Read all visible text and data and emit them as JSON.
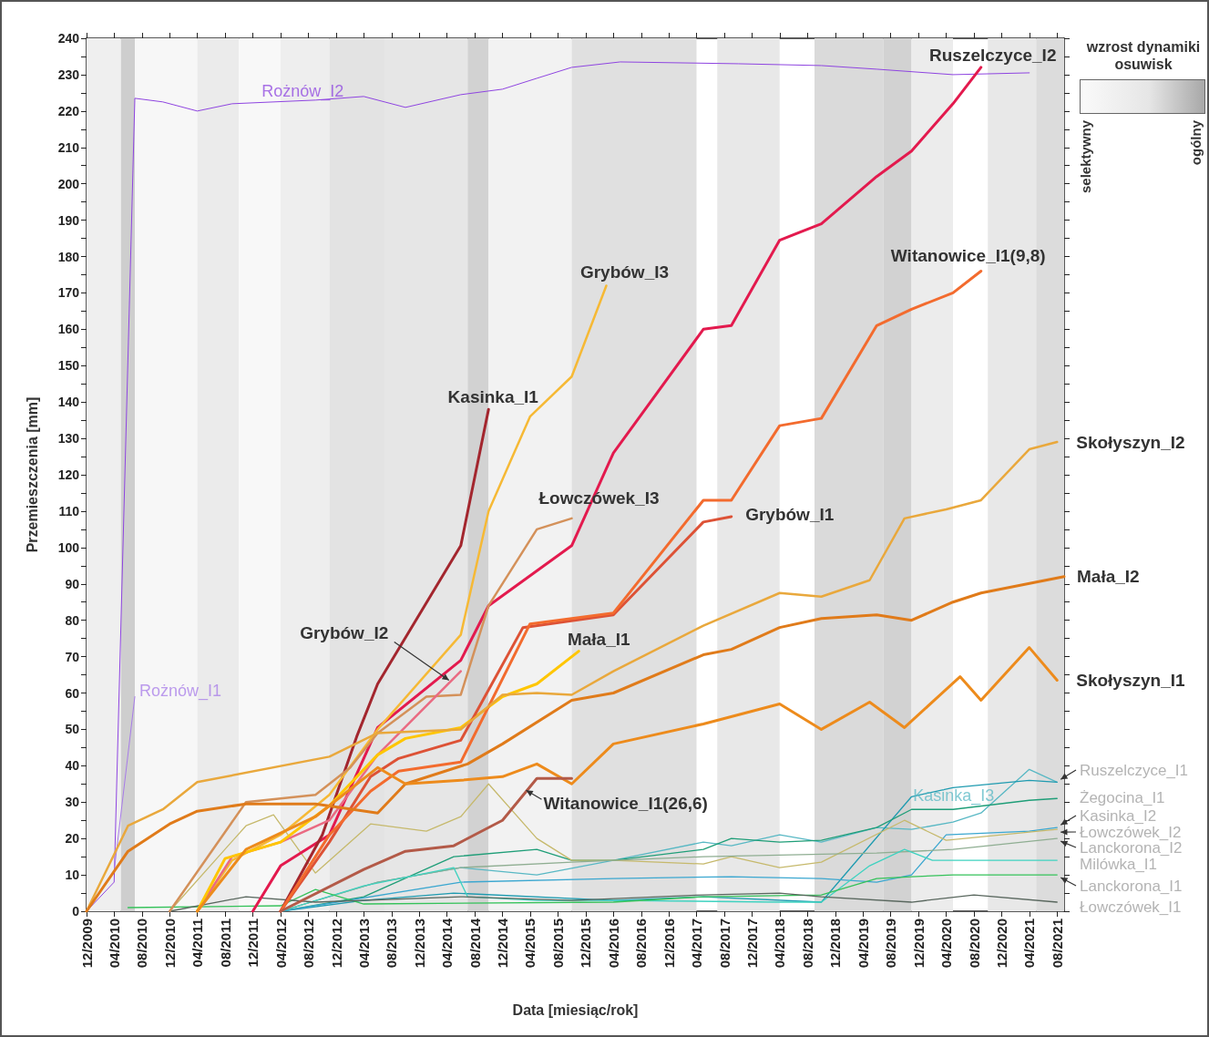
{
  "chart_data": {
    "type": "line",
    "xlabel": "Data [miesiąc/rok]",
    "ylabel": "Przemieszczenia [mm]",
    "legend_title": "wzrost dynamiki osuwisk",
    "annotations": [
      "selektywny",
      "ogólny"
    ],
    "marker": "none",
    "grid": false,
    "legend": false,
    "xlim": [
      "2009-12",
      "2021-09"
    ],
    "xticks": [
      {
        "value": "2009-12",
        "label": "12/2009"
      },
      {
        "value": "2010-04",
        "label": "04/2010"
      },
      {
        "value": "2010-08",
        "label": "08/2010"
      },
      {
        "value": "2010-12",
        "label": "12/2010"
      },
      {
        "value": "2011-04",
        "label": "04/2011"
      },
      {
        "value": "2011-08",
        "label": "08/2011"
      },
      {
        "value": "2011-12",
        "label": "12/2011"
      },
      {
        "value": "2012-04",
        "label": "04/2012"
      },
      {
        "value": "2012-08",
        "label": "08/2012"
      },
      {
        "value": "2012-12",
        "label": "12/2012"
      },
      {
        "value": "2013-04",
        "label": "04/2013"
      },
      {
        "value": "2013-08",
        "label": "08/2013"
      },
      {
        "value": "2013-12",
        "label": "12/2013"
      },
      {
        "value": "2014-04",
        "label": "04/2014"
      },
      {
        "value": "2014-08",
        "label": "08/2014"
      },
      {
        "value": "2014-12",
        "label": "12/2014"
      },
      {
        "value": "2015-04",
        "label": "04/2015"
      },
      {
        "value": "2015-08",
        "label": "08/2015"
      },
      {
        "value": "2015-12",
        "label": "12/2015"
      },
      {
        "value": "2016-04",
        "label": "04/2016"
      },
      {
        "value": "2016-08",
        "label": "08/2016"
      },
      {
        "value": "2016-12",
        "label": "12/2016"
      },
      {
        "value": "2017-04",
        "label": "04/2017"
      },
      {
        "value": "2017-08",
        "label": "08/2017"
      },
      {
        "value": "2017-12",
        "label": "12/2017"
      },
      {
        "value": "2018-04",
        "label": "04/2018"
      },
      {
        "value": "2018-08",
        "label": "08/2018"
      },
      {
        "value": "2018-12",
        "label": "12/2018"
      },
      {
        "value": "2019-04",
        "label": "04/2019"
      },
      {
        "value": "2019-08",
        "label": "08/2019"
      },
      {
        "value": "2019-12",
        "label": "12/2019"
      },
      {
        "value": "2020-04",
        "label": "04/2020"
      },
      {
        "value": "2020-08",
        "label": "08/2020"
      },
      {
        "value": "2020-12",
        "label": "12/2020"
      },
      {
        "value": "2021-04",
        "label": "04/2021"
      },
      {
        "value": "2021-08",
        "label": "08/2021"
      }
    ],
    "ylim": [
      0,
      240
    ],
    "yticks": [
      0,
      {
        "value": 5,
        "label": null
      },
      10,
      {
        "value": 15,
        "label": null
      },
      20,
      {
        "value": 25,
        "label": null
      },
      30,
      {
        "value": 35,
        "label": null
      },
      40,
      {
        "value": 45,
        "label": null
      },
      50,
      {
        "value": 55,
        "label": null
      },
      60,
      {
        "value": 65,
        "label": null
      },
      70,
      {
        "value": 75,
        "label": null
      },
      80,
      {
        "value": 85,
        "label": null
      },
      90,
      {
        "value": 95,
        "label": null
      },
      100,
      {
        "value": 105,
        "label": null
      },
      110,
      {
        "value": 115,
        "label": null
      },
      120,
      {
        "value": 125,
        "label": null
      },
      130,
      {
        "value": 135,
        "label": null
      },
      140,
      {
        "value": 145,
        "label": null
      },
      150,
      {
        "value": 155,
        "label": null
      },
      160,
      {
        "value": 165,
        "label": null
      },
      170,
      {
        "value": 175,
        "label": null
      },
      180,
      {
        "value": 185,
        "label": null
      },
      190,
      {
        "value": 195,
        "label": null
      },
      200,
      {
        "value": 205,
        "label": null
      },
      210,
      {
        "value": 215,
        "label": null
      },
      220,
      {
        "value": 225,
        "label": null
      },
      230,
      {
        "value": 235,
        "label": null
      },
      240
    ],
    "bands": [
      {
        "axis": "x",
        "from": "2009-12",
        "to": "2010-05",
        "color": "#efefef"
      },
      {
        "axis": "x",
        "from": "2010-05",
        "to": "2010-07",
        "color": "#cecece"
      },
      {
        "axis": "x",
        "from": "2010-07",
        "to": "2011-04",
        "color": "#f7f7f7"
      },
      {
        "axis": "x",
        "from": "2011-04",
        "to": "2011-10",
        "color": "#ebebeb"
      },
      {
        "axis": "x",
        "from": "2011-10",
        "to": "2012-04",
        "color": "#f8f8f8"
      },
      {
        "axis": "x",
        "from": "2012-04",
        "to": "2012-11",
        "color": "#eeeeee"
      },
      {
        "axis": "x",
        "from": "2012-11",
        "to": "2013-07",
        "color": "#e3e3e3"
      },
      {
        "axis": "x",
        "from": "2013-07",
        "to": "2014-07",
        "color": "#e6e6e6"
      },
      {
        "axis": "x",
        "from": "2014-07",
        "to": "2014-10",
        "color": "#d2d2d2"
      },
      {
        "axis": "x",
        "from": "2014-10",
        "to": "2015-10",
        "color": "#f2f2f2"
      },
      {
        "axis": "x",
        "from": "2015-10",
        "to": "2017-04",
        "color": "#e0e0e0"
      },
      {
        "axis": "x",
        "from": "2017-07",
        "to": "2018-04",
        "color": "#e8e8e8"
      },
      {
        "axis": "x",
        "from": "2018-09",
        "to": "2019-07",
        "color": "#dadada"
      },
      {
        "axis": "x",
        "from": "2019-07",
        "to": "2019-11",
        "color": "#d2d2d2"
      },
      {
        "axis": "x",
        "from": "2019-11",
        "to": "2020-05",
        "color": "#ececec"
      },
      {
        "axis": "x",
        "from": "2020-10",
        "to": "2021-05",
        "color": "#e8e8e8"
      },
      {
        "axis": "x",
        "from": "2021-05",
        "to": "2021-09",
        "color": "#dcdcdc"
      }
    ],
    "series": [
      {
        "name": "Rożnów_I2",
        "color": "#8e44e0",
        "x": [
          "2009-12",
          "2010-04",
          "2010-07",
          "2010-11",
          "2011-04",
          "2011-09",
          "2012-09",
          "2013-04",
          "2013-10",
          "2014-06",
          "2014-12",
          "2015-05",
          "2015-10",
          "2016-05",
          "2017-10",
          "2018-10",
          "2019-06",
          "2020-05",
          "2021-04"
        ],
        "values": [
          0,
          8,
          223.5,
          222.5,
          220,
          222,
          223,
          224,
          221,
          224.5,
          226,
          229,
          232,
          233.5,
          233,
          232.5,
          231.5,
          230,
          230.5
        ]
      },
      {
        "name": "Rożnów_I1",
        "color": "#a77be8",
        "x": [
          "2009-12",
          "2010-04",
          "2010-07"
        ],
        "values": [
          0,
          11,
          59
        ]
      },
      {
        "name": "Ruszelczyce_I2",
        "color": "#e31a4e",
        "x": [
          "2011-12",
          "2012-04",
          "2012-11",
          "2013-06",
          "2014-06",
          "2014-10",
          "2015-10",
          "2016-04",
          "2017-05",
          "2017-09",
          "2018-04",
          "2018-10",
          "2019-06",
          "2019-11",
          "2020-05",
          "2020-09"
        ],
        "values": [
          0,
          12.5,
          21,
          50.5,
          69,
          84,
          100.5,
          126,
          160,
          161,
          184.5,
          189,
          202,
          209,
          222,
          232
        ]
      },
      {
        "name": "Kasinka_I1",
        "color": "#a3262e",
        "x": [
          "2012-04",
          "2012-10",
          "2013-03",
          "2013-06",
          "2014-06",
          "2014-10"
        ],
        "values": [
          0,
          21,
          48,
          62.5,
          100.5,
          138
        ]
      },
      {
        "name": "Grybów_I3",
        "color": "#f6b935",
        "x": [
          "2011-04",
          "2011-09",
          "2012-04",
          "2012-11",
          "2013-06",
          "2014-06",
          "2014-10",
          "2015-04",
          "2015-10",
          "2016-03"
        ],
        "values": [
          0,
          14,
          21,
          32,
          50,
          76,
          110,
          136,
          147,
          172
        ]
      },
      {
        "name": "Łowczówek_I3",
        "color": "#d4915a",
        "x": [
          "2010-12",
          "2011-11",
          "2012-09",
          "2013-02",
          "2013-06",
          "2014-01",
          "2014-06",
          "2014-10",
          "2015-05",
          "2015-10"
        ],
        "values": [
          0,
          30,
          32,
          39.5,
          49,
          59,
          59.5,
          84,
          105,
          108
        ]
      },
      {
        "name": "Grybów_I2",
        "color": "#ea6a82",
        "x": [
          "2011-04",
          "2011-09",
          "2012-04",
          "2012-11",
          "2013-06",
          "2014-06"
        ],
        "values": [
          0,
          15,
          19,
          25,
          43,
          66
        ]
      },
      {
        "name": "Mała_I1",
        "color": "#ffc600",
        "x": [
          "2011-04",
          "2011-08",
          "2012-04",
          "2012-11",
          "2013-06",
          "2013-10",
          "2014-06",
          "2014-12",
          "2015-05",
          "2015-11"
        ],
        "values": [
          0,
          14.5,
          19,
          29,
          43,
          47.5,
          50.5,
          59,
          62.5,
          71.5
        ]
      },
      {
        "name": "Grybów_I1",
        "color": "#dd5236",
        "x": [
          "2012-04",
          "2012-11",
          "2013-05",
          "2013-09",
          "2014-06",
          "2015-03",
          "2016-04",
          "2017-05",
          "2017-09"
        ],
        "values": [
          0,
          19,
          37,
          42,
          47,
          78,
          81.5,
          107,
          108.5
        ]
      },
      {
        "name": "Witanowice_I1(9,8)",
        "color": "#f36b2e",
        "x": [
          "2012-04",
          "2012-11",
          "2013-05",
          "2013-09",
          "2014-06",
          "2015-04",
          "2016-04",
          "2017-05",
          "2017-09",
          "2018-04",
          "2018-10",
          "2019-06",
          "2019-11",
          "2020-05",
          "2020-09"
        ],
        "values": [
          0,
          21,
          33,
          38.5,
          41,
          79,
          82,
          113,
          113,
          133.5,
          135.5,
          161,
          165.5,
          170,
          176
        ]
      },
      {
        "name": "Skołyszyn_I2",
        "color": "#e9a83c",
        "x": [
          "2009-12",
          "2010-06",
          "2010-11",
          "2011-04",
          "2012-11",
          "2013-06",
          "2014-06",
          "2014-12",
          "2015-05",
          "2015-10",
          "2016-04",
          "2017-05",
          "2018-04",
          "2018-10",
          "2019-05",
          "2019-10",
          "2020-04",
          "2020-09",
          "2021-04",
          "2021-08"
        ],
        "values": [
          0,
          23.5,
          28,
          35.5,
          42.5,
          49,
          50,
          59.5,
          60,
          59.5,
          66,
          78.5,
          87.5,
          86.5,
          91,
          108,
          110.5,
          113,
          127,
          129
        ]
      },
      {
        "name": "Mała_I2",
        "color": "#e07b1a",
        "x": [
          "2009-12",
          "2010-06",
          "2010-12",
          "2011-04",
          "2011-11",
          "2012-09",
          "2013-06",
          "2013-10",
          "2014-07",
          "2014-12",
          "2015-10",
          "2016-04",
          "2017-05",
          "2017-09",
          "2018-04",
          "2018-10",
          "2019-06",
          "2019-11",
          "2020-05",
          "2020-09",
          "2021-09"
        ],
        "values": [
          0,
          16.5,
          24,
          27.5,
          29.5,
          29.5,
          27,
          35,
          40.5,
          46,
          58,
          60,
          70.5,
          72,
          78,
          80.5,
          81.5,
          80,
          85,
          87.5,
          92
        ]
      },
      {
        "name": "Skołyszyn_I1",
        "color": "#ed8b1c",
        "x": [
          "2011-04",
          "2011-11",
          "2012-09",
          "2013-06",
          "2013-10",
          "2014-06",
          "2014-12",
          "2015-05",
          "2015-10",
          "2016-04",
          "2017-05",
          "2018-04",
          "2018-10",
          "2019-05",
          "2019-10",
          "2020-06",
          "2020-09",
          "2021-04",
          "2021-08"
        ],
        "values": [
          0,
          17,
          26,
          39.5,
          35,
          36,
          37,
          40.5,
          35,
          46,
          51.5,
          57,
          50,
          57.5,
          50.5,
          64.5,
          58,
          72.5,
          63.5
        ]
      },
      {
        "name": "Witanowice_I1(26,6)",
        "color": "#b35a48",
        "x": [
          "2012-04",
          "2013-04",
          "2013-10",
          "2014-05",
          "2014-12",
          "2015-05",
          "2015-10"
        ],
        "values": [
          0,
          11.5,
          16.5,
          18,
          25,
          36.5,
          36.5
        ]
      },
      {
        "name": "Kasinka_I3",
        "color": "#58b8c4",
        "x": [
          "2012-04",
          "2013-06",
          "2014-06",
          "2015-05",
          "2016-04",
          "2017-05",
          "2017-09",
          "2018-04",
          "2018-10",
          "2019-06",
          "2019-11",
          "2020-05",
          "2020-09",
          "2021-04",
          "2021-08"
        ],
        "values": [
          0,
          8,
          12,
          10,
          14,
          19,
          18,
          21,
          19,
          23,
          22.5,
          24.5,
          27,
          39,
          35.5
        ]
      },
      {
        "name": "Ruszelczyce_I1",
        "color": "#1f9bb0",
        "x": [
          "2012-04",
          "2013-04",
          "2014-05",
          "2016-04",
          "2017-05",
          "2018-10",
          "2019-11",
          "2020-05",
          "2021-04",
          "2021-08"
        ],
        "values": [
          0,
          3,
          5,
          3,
          4,
          2.5,
          31.5,
          34,
          36,
          35.5
        ]
      },
      {
        "name": "Żegocina_I1",
        "color": "#1f9e78",
        "x": [
          "2012-04",
          "2013-04",
          "2014-05",
          "2015-05",
          "2015-10",
          "2016-04",
          "2017-05",
          "2017-09",
          "2018-04",
          "2018-10",
          "2019-06",
          "2019-11",
          "2020-05",
          "2021-04",
          "2021-08"
        ],
        "values": [
          0,
          4,
          15,
          17,
          14,
          14,
          17,
          20,
          19,
          19.5,
          23,
          28,
          28,
          30.5,
          31
        ]
      },
      {
        "name": "Kasinka_I2",
        "color": "#3ba7d0",
        "x": [
          "2012-04",
          "2014-06",
          "2016-04",
          "2017-09",
          "2018-10",
          "2019-06",
          "2019-11",
          "2020-04",
          "2021-04",
          "2021-08"
        ],
        "values": [
          0,
          8,
          9,
          9.5,
          9,
          8,
          10,
          21,
          22,
          23
        ]
      },
      {
        "name": "Łowczówek_I2",
        "color": "#c6b96c",
        "x": [
          "2010-12",
          "2011-11",
          "2012-03",
          "2012-09",
          "2013-05",
          "2014-01",
          "2014-06",
          "2014-10",
          "2015-05",
          "2015-10",
          "2016-04",
          "2017-05",
          "2017-09",
          "2018-04",
          "2018-10",
          "2019-10",
          "2020-04",
          "2021-08"
        ],
        "values": [
          0,
          23.5,
          26.5,
          10.5,
          24,
          22,
          26,
          35,
          20,
          14,
          14,
          13,
          15,
          12,
          13.5,
          25,
          19.5,
          22.5
        ]
      },
      {
        "name": "Lanckorona_I2",
        "color": "#8fae92",
        "x": [
          "2012-04",
          "2013-06",
          "2014-06",
          "2015-10",
          "2017-05",
          "2019-06",
          "2020-05",
          "2021-08"
        ],
        "values": [
          0,
          8,
          12,
          13.5,
          15,
          16,
          17,
          20
        ]
      },
      {
        "name": "Milówka_I1",
        "color": "#3fd2c0",
        "x": [
          "2012-04",
          "2013-04",
          "2014-05",
          "2014-07",
          "2015-05",
          "2016-04",
          "2018-04",
          "2018-10",
          "2019-05",
          "2019-10",
          "2020-02",
          "2021-08"
        ],
        "values": [
          0,
          7,
          12,
          4,
          3,
          3,
          2.5,
          2.5,
          12.5,
          17,
          14,
          14
        ]
      },
      {
        "name": "Lanckorona_I1",
        "color": "#35c25a",
        "x": [
          "2010-06",
          "2012-04",
          "2012-09",
          "2013-04",
          "2016-04",
          "2017-05",
          "2018-10",
          "2019-06",
          "2019-11",
          "2020-05",
          "2021-04",
          "2021-08"
        ],
        "values": [
          1,
          1.5,
          6,
          2,
          2.5,
          4,
          4.5,
          9,
          9.5,
          10,
          10,
          10
        ]
      },
      {
        "name": "Łowczówek_I1",
        "color": "#59675e",
        "x": [
          "2010-12",
          "2011-11",
          "2012-09",
          "2014-06",
          "2015-10",
          "2017-05",
          "2018-04",
          "2018-10",
          "2019-11",
          "2020-08",
          "2021-08"
        ],
        "values": [
          0,
          4,
          2.5,
          4,
          3,
          4.5,
          5,
          4,
          2.5,
          4.5,
          2.5
        ]
      }
    ]
  }
}
